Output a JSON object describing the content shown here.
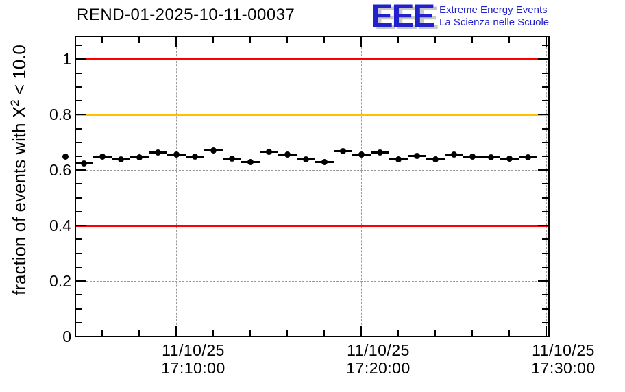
{
  "header": {
    "title": "REND-01-2025-10-11-00037"
  },
  "logo": {
    "mark": "EEE",
    "line1": "Extreme Energy Events",
    "line2": "La Scienza nelle Scuole",
    "color": "#2222cc",
    "shadow_color": "#c8c8c8"
  },
  "colors": {
    "background": "#ffffff",
    "axis": "#000000",
    "grid": "#999999",
    "limit_red": "#ff0000",
    "warning_orange": "#ffc000",
    "marker": "#000000"
  },
  "chart_data": {
    "type": "scatter",
    "title": "REND-01-2025-10-11-00037",
    "ylabel_parts": {
      "prefix": "fraction of events with X",
      "sup": "2",
      "suffix": " < 10.0"
    },
    "ylabel_plain": "fraction of events with X^2 < 10.0",
    "xlabel": "",
    "ylim": [
      0,
      1.085
    ],
    "grid": true,
    "legend": null,
    "y_axis": {
      "major_tick_values": [
        0,
        0.2,
        0.4,
        0.6,
        0.8,
        1
      ],
      "major_tick_labels": [
        "0",
        "0.2",
        "0.4",
        "0.6",
        "0.8",
        "1"
      ],
      "minor_step": 0.05
    },
    "x_axis": {
      "date": "11/10/25",
      "major_tick_times": [
        "17:10:00",
        "17:20:00",
        "17:30:00"
      ],
      "major_tick_labels": [
        [
          "11/10/25",
          "17:10:00"
        ],
        [
          "11/10/25",
          "17:20:00"
        ],
        [
          "11/10/25",
          "17:30:00"
        ]
      ],
      "minor_step_minutes": 2
    },
    "reference_lines": [
      {
        "name": "upper-limit-line",
        "value": 1.0,
        "color": "#ff0000"
      },
      {
        "name": "warning-line",
        "value": 0.8,
        "color": "#ffc000"
      },
      {
        "name": "lower-limit-line",
        "value": 0.4,
        "color": "#ff0000"
      }
    ],
    "series": [
      {
        "name": "fraction-per-minute",
        "marker": "filled-circle",
        "color": "#000000",
        "bin_width_minutes": 1,
        "x_times": [
          "17:04",
          "17:05",
          "17:06",
          "17:07",
          "17:08",
          "17:09",
          "17:10",
          "17:11",
          "17:12",
          "17:13",
          "17:14",
          "17:15",
          "17:16",
          "17:17",
          "17:18",
          "17:19",
          "17:20",
          "17:21",
          "17:22",
          "17:23",
          "17:24",
          "17:25",
          "17:26",
          "17:27",
          "17:28",
          "17:29"
        ],
        "values": [
          0.65,
          0.625,
          0.65,
          0.64,
          0.647,
          0.664,
          0.655,
          0.65,
          0.672,
          0.642,
          0.63,
          0.667,
          0.657,
          0.64,
          0.63,
          0.669,
          0.655,
          0.664,
          0.64,
          0.652,
          0.64,
          0.655,
          0.65,
          0.647,
          0.642,
          0.647
        ]
      }
    ]
  }
}
